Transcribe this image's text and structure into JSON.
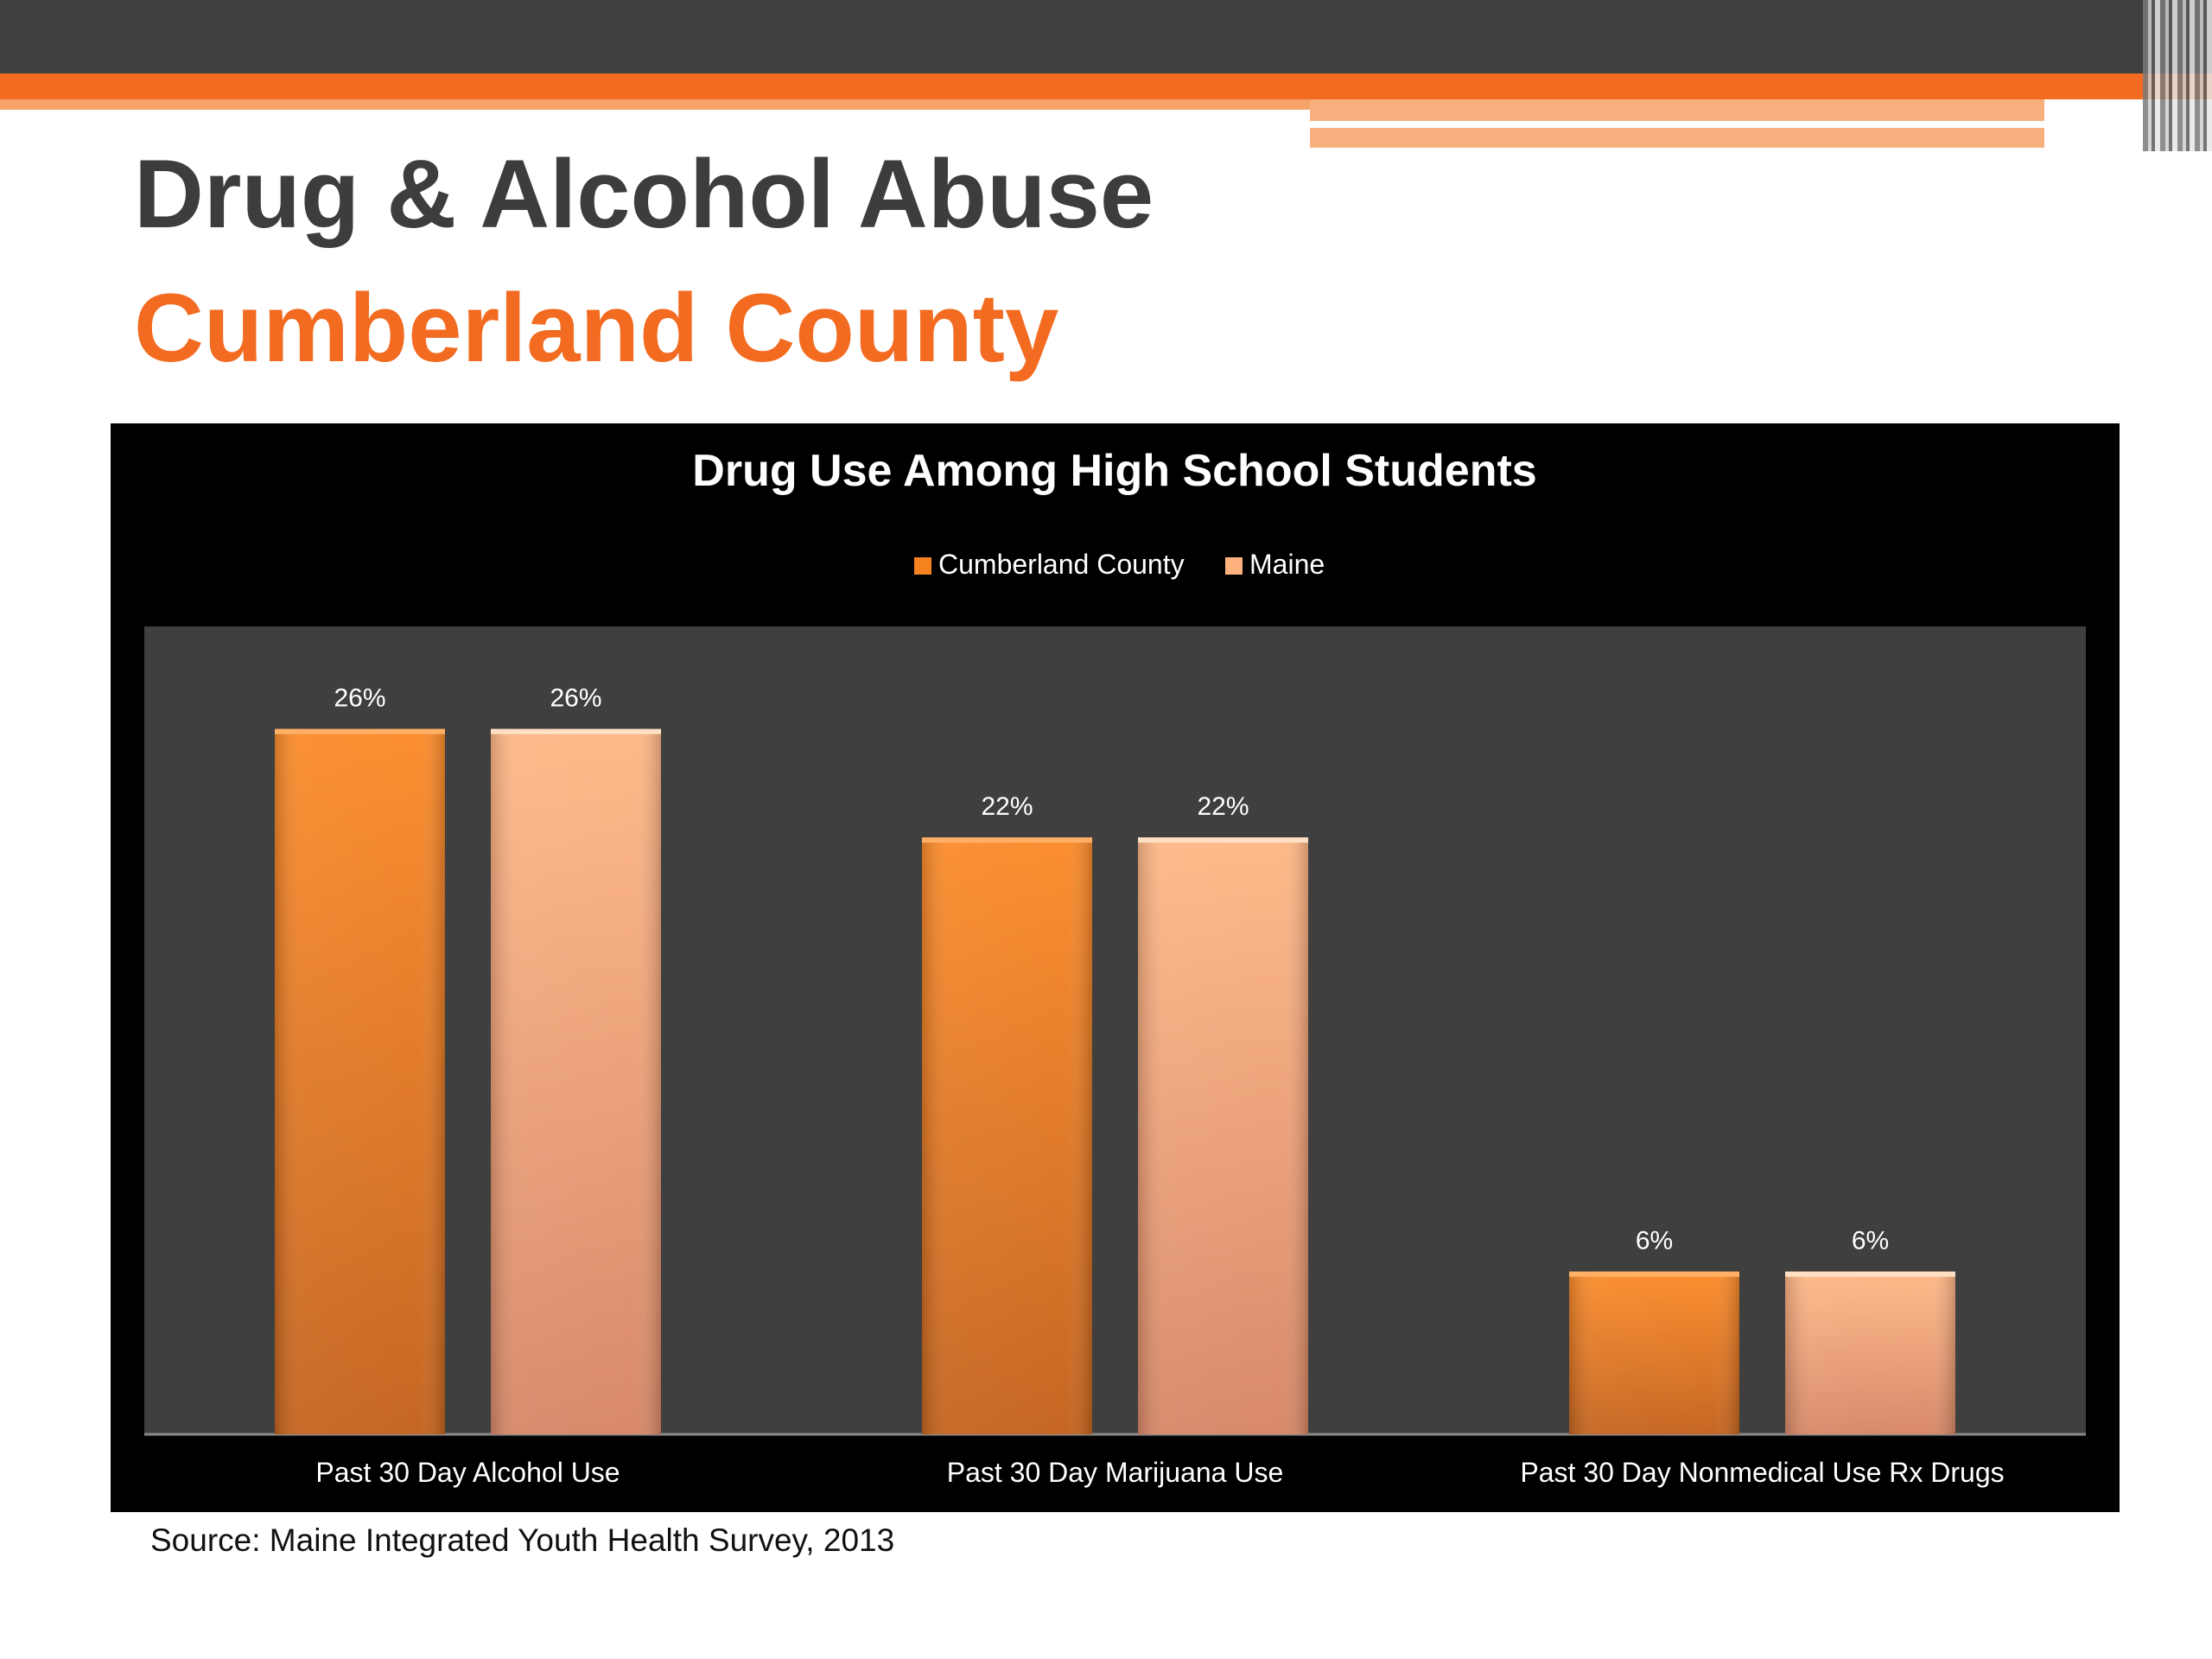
{
  "slide": {
    "title": "Drug & Alcohol Abuse",
    "subtitle": "Cumberland County",
    "source": "Source: Maine Integrated Youth Health Survey, 2013"
  },
  "colors": {
    "dark_gray": "#404040",
    "accent_orange": "#f26b21",
    "cumberland_bar": "#f5821f",
    "maine_bar": "#fdb27e",
    "plot_bg": "#3f3f3f",
    "chart_bg": "#000000"
  },
  "chart_data": {
    "type": "bar",
    "title": "Drug Use Among High School Students",
    "categories": [
      "Past 30 Day Alcohol Use",
      "Past 30 Day Marijuana Use",
      "Past 30 Day Nonmedical Use Rx Drugs"
    ],
    "series": [
      {
        "name": "Cumberland County",
        "values": [
          26,
          22,
          6
        ],
        "labels": [
          "26%",
          "22%",
          "6%"
        ],
        "color": "#f5821f"
      },
      {
        "name": "Maine",
        "values": [
          26,
          22,
          6
        ],
        "labels": [
          "26%",
          "22%",
          "6%"
        ],
        "color": "#fdb27e"
      }
    ],
    "ylim": [
      0,
      30
    ],
    "grid": false,
    "legend": "top"
  }
}
